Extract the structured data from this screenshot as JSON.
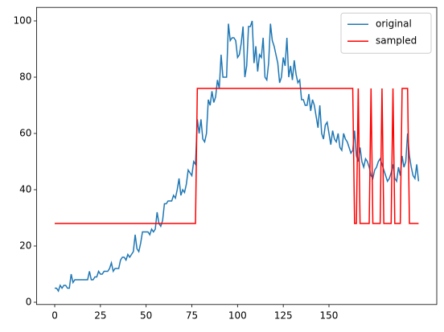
{
  "chart_data": {
    "type": "line",
    "x": [
      0,
      1,
      2,
      3,
      4,
      5,
      6,
      7,
      8,
      9,
      10,
      11,
      12,
      13,
      14,
      15,
      16,
      17,
      18,
      19,
      20,
      21,
      22,
      23,
      24,
      25,
      26,
      27,
      28,
      29,
      30,
      31,
      32,
      33,
      34,
      35,
      36,
      37,
      38,
      39,
      40,
      41,
      42,
      43,
      44,
      45,
      46,
      47,
      48,
      49,
      50,
      51,
      52,
      53,
      54,
      55,
      56,
      57,
      58,
      59,
      60,
      61,
      62,
      63,
      64,
      65,
      66,
      67,
      68,
      69,
      70,
      71,
      72,
      73,
      74,
      75,
      76,
      77,
      78,
      79,
      80,
      81,
      82,
      83,
      84,
      85,
      86,
      87,
      88,
      89,
      90,
      91,
      92,
      93,
      94,
      95,
      96,
      97,
      98,
      99,
      100,
      101,
      102,
      103,
      104,
      105,
      106,
      107,
      108,
      109,
      110,
      111,
      112,
      113,
      114,
      115,
      116,
      117,
      118,
      119,
      120,
      121,
      122,
      123,
      124,
      125,
      126,
      127,
      128,
      129,
      130,
      131,
      132,
      133,
      134,
      135,
      136,
      137,
      138,
      139,
      140,
      141,
      142,
      143,
      144,
      145,
      146,
      147,
      148,
      149,
      150,
      151,
      152,
      153,
      154,
      155,
      156,
      157,
      158,
      159,
      160,
      161,
      162,
      163,
      164,
      165,
      166,
      167,
      168,
      169,
      170,
      171,
      172,
      173,
      174,
      175,
      176,
      177,
      178,
      179,
      180,
      181,
      182,
      183,
      184,
      185,
      186,
      187,
      188,
      189,
      190,
      191,
      192,
      193,
      194,
      195,
      196,
      197,
      198,
      199
    ],
    "series": [
      {
        "name": "original",
        "color": "#1f77b4",
        "values": [
          5,
          5,
          4,
          6,
          5,
          6,
          6,
          5,
          5,
          10,
          7,
          8,
          8,
          8,
          8,
          8,
          8,
          8,
          8,
          11,
          8,
          8,
          9,
          9,
          11,
          10,
          10,
          11,
          11,
          11,
          12,
          14,
          11,
          12,
          12,
          12,
          15,
          16,
          16,
          15,
          17,
          16,
          17,
          18,
          24,
          19,
          18,
          21,
          25,
          25,
          25,
          25,
          24,
          26,
          25,
          26,
          32,
          28,
          27,
          29,
          35,
          35,
          36,
          36,
          36,
          38,
          37,
          40,
          44,
          38,
          40,
          39,
          42,
          47,
          46,
          45,
          50,
          49,
          65,
          60,
          65,
          58,
          57,
          60,
          72,
          70,
          75,
          71,
          73,
          79,
          76,
          88,
          80,
          80,
          80,
          99,
          93,
          94,
          94,
          93,
          87,
          88,
          92,
          98,
          80,
          84,
          98,
          98,
          100,
          85,
          91,
          82,
          88,
          87,
          94,
          80,
          79,
          85,
          99,
          93,
          91,
          88,
          85,
          78,
          80,
          87,
          84,
          94,
          80,
          84,
          79,
          86,
          81,
          78,
          79,
          72,
          72,
          70,
          70,
          74,
          68,
          72,
          70,
          66,
          62,
          70,
          60,
          58,
          63,
          64,
          60,
          56,
          61,
          58,
          57,
          60,
          55,
          54,
          60,
          58,
          57,
          55,
          53,
          54,
          61,
          52,
          50,
          55,
          50,
          48,
          51,
          50,
          48,
          45,
          44,
          47,
          48,
          50,
          51,
          49,
          47,
          45,
          43,
          44,
          46,
          49,
          44,
          43,
          48,
          45,
          52,
          48,
          50,
          60,
          52,
          48,
          45,
          44,
          49,
          43
        ]
      },
      {
        "name": "sampled",
        "color": "#ff0000",
        "values": [
          28,
          28,
          28,
          28,
          28,
          28,
          28,
          28,
          28,
          28,
          28,
          28,
          28,
          28,
          28,
          28,
          28,
          28,
          28,
          28,
          28,
          28,
          28,
          28,
          28,
          28,
          28,
          28,
          28,
          28,
          28,
          28,
          28,
          28,
          28,
          28,
          28,
          28,
          28,
          28,
          28,
          28,
          28,
          28,
          28,
          28,
          28,
          28,
          28,
          28,
          28,
          28,
          28,
          28,
          28,
          28,
          28,
          28,
          28,
          28,
          28,
          28,
          28,
          28,
          28,
          28,
          28,
          28,
          28,
          28,
          28,
          28,
          28,
          28,
          28,
          28,
          28,
          28,
          76,
          76,
          76,
          76,
          76,
          76,
          76,
          76,
          76,
          76,
          76,
          76,
          76,
          76,
          76,
          76,
          76,
          76,
          76,
          76,
          76,
          76,
          76,
          76,
          76,
          76,
          76,
          76,
          76,
          76,
          76,
          76,
          76,
          76,
          76,
          76,
          76,
          76,
          76,
          76,
          76,
          76,
          76,
          76,
          76,
          76,
          76,
          76,
          76,
          76,
          76,
          76,
          76,
          76,
          76,
          76,
          76,
          76,
          76,
          76,
          76,
          76,
          76,
          76,
          76,
          76,
          76,
          76,
          76,
          76,
          76,
          76,
          76,
          76,
          76,
          76,
          76,
          76,
          76,
          76,
          76,
          76,
          76,
          76,
          76,
          76,
          28,
          28,
          76,
          28,
          28,
          28,
          28,
          28,
          28,
          76,
          28,
          28,
          28,
          28,
          28,
          76,
          28,
          28,
          28,
          28,
          28,
          76,
          28,
          28,
          28,
          28,
          76,
          76,
          76,
          76,
          28,
          28,
          28,
          28,
          28,
          28
        ]
      }
    ],
    "xlim": [
      -9.95,
      208.95
    ],
    "xticks": [
      0,
      25,
      50,
      75,
      100,
      125,
      150
    ],
    "ylim": [
      -0.8,
      104.8
    ],
    "yticks": [
      0,
      20,
      40,
      60,
      80,
      100
    ],
    "legend": "upper right"
  }
}
